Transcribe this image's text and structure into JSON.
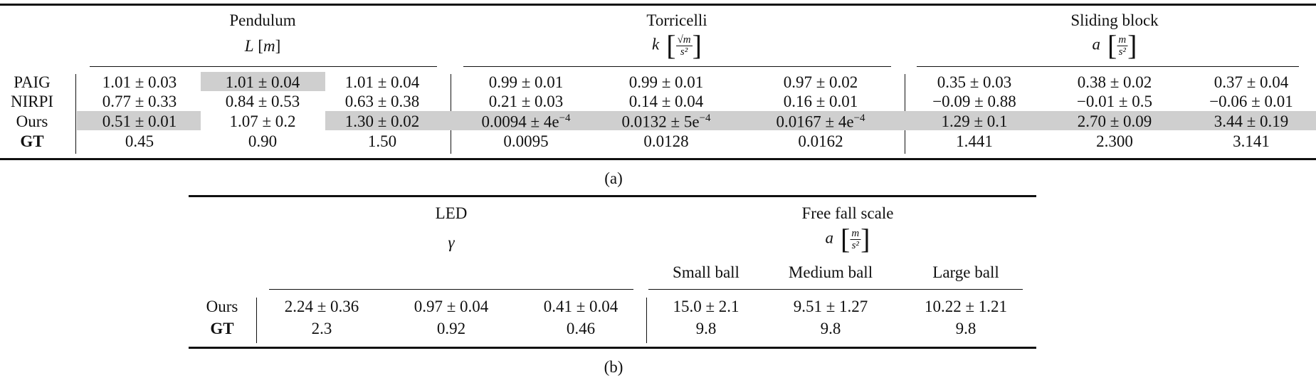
{
  "table_a": {
    "groups": [
      {
        "title": "Pendulum",
        "symbol": "L",
        "unit": "m",
        "unit_num": "",
        "unit_den": ""
      },
      {
        "title": "Torricelli",
        "symbol": "k",
        "unit": "",
        "unit_num": "√m",
        "unit_den": "s²"
      },
      {
        "title": "Sliding block",
        "symbol": "a",
        "unit": "",
        "unit_num": "m",
        "unit_den": "s²"
      }
    ],
    "rows": [
      {
        "label": "PAIG",
        "bold": false,
        "cells": [
          {
            "text": "1.01 ± 0.03"
          },
          {
            "text": "1.01 ± 0.04",
            "highlight": true
          },
          {
            "text": "1.01 ± 0.04"
          },
          {
            "text": "0.99 ± 0.01"
          },
          {
            "text": "0.99 ± 0.01"
          },
          {
            "text": "0.97 ± 0.02"
          },
          {
            "text": "0.35 ± 0.03"
          },
          {
            "text": "0.38 ± 0.02"
          },
          {
            "text": "0.37 ± 0.04"
          }
        ]
      },
      {
        "label": "NIRPI",
        "bold": false,
        "cells": [
          {
            "text": "0.77 ± 0.33"
          },
          {
            "text": "0.84 ± 0.53"
          },
          {
            "text": "0.63 ± 0.38"
          },
          {
            "text": "0.21 ± 0.03"
          },
          {
            "text": "0.14 ± 0.04"
          },
          {
            "text": "0.16 ± 0.01"
          },
          {
            "text": "−0.09 ± 0.88"
          },
          {
            "text": "−0.01 ± 0.5"
          },
          {
            "text": "−0.06 ± 0.01"
          }
        ]
      },
      {
        "label": "Ours",
        "bold": false,
        "cells": [
          {
            "text": "0.51 ± 0.01",
            "highlight": true
          },
          {
            "text": "1.07 ± 0.2"
          },
          {
            "text": "1.30 ± 0.02",
            "highlight": true
          },
          {
            "text": "0.0094 ± 4e",
            "sup": "−4",
            "highlight": true
          },
          {
            "text": "0.0132 ± 5e",
            "sup": "−4",
            "highlight": true
          },
          {
            "text": "0.0167 ± 4e",
            "sup": "−4",
            "highlight": true
          },
          {
            "text": "1.29 ± 0.1",
            "highlight": true
          },
          {
            "text": "2.70 ± 0.09",
            "highlight": true
          },
          {
            "text": "3.44 ± 0.19",
            "highlight": true
          }
        ]
      },
      {
        "label": "GT",
        "bold": true,
        "cells": [
          {
            "text": "0.45"
          },
          {
            "text": "0.90"
          },
          {
            "text": "1.50"
          },
          {
            "text": "0.0095"
          },
          {
            "text": "0.0128"
          },
          {
            "text": "0.0162"
          },
          {
            "text": "1.441"
          },
          {
            "text": "2.300"
          },
          {
            "text": "3.141"
          }
        ]
      }
    ],
    "highlight_color": "#cfcfcf",
    "caption": "(a)"
  },
  "table_b": {
    "groups": [
      {
        "title": "LED",
        "symbol": "γ",
        "unit_num": "",
        "unit_den": "",
        "subheaders": []
      },
      {
        "title": "Free fall scale",
        "symbol": "a",
        "unit_num": "m",
        "unit_den": "s²",
        "subheaders": [
          "Small ball",
          "Medium ball",
          "Large ball"
        ]
      }
    ],
    "rows": [
      {
        "label": "Ours",
        "bold": false,
        "cells": [
          "2.24 ± 0.36",
          "0.97 ± 0.04",
          "0.41 ± 0.04",
          "15.0 ± 2.1",
          "9.51 ± 1.27",
          "10.22 ± 1.21"
        ]
      },
      {
        "label": "GT",
        "bold": true,
        "cells": [
          "2.3",
          "0.92",
          "0.46",
          "9.8",
          "9.8",
          "9.8"
        ]
      }
    ],
    "caption": "(b)"
  }
}
